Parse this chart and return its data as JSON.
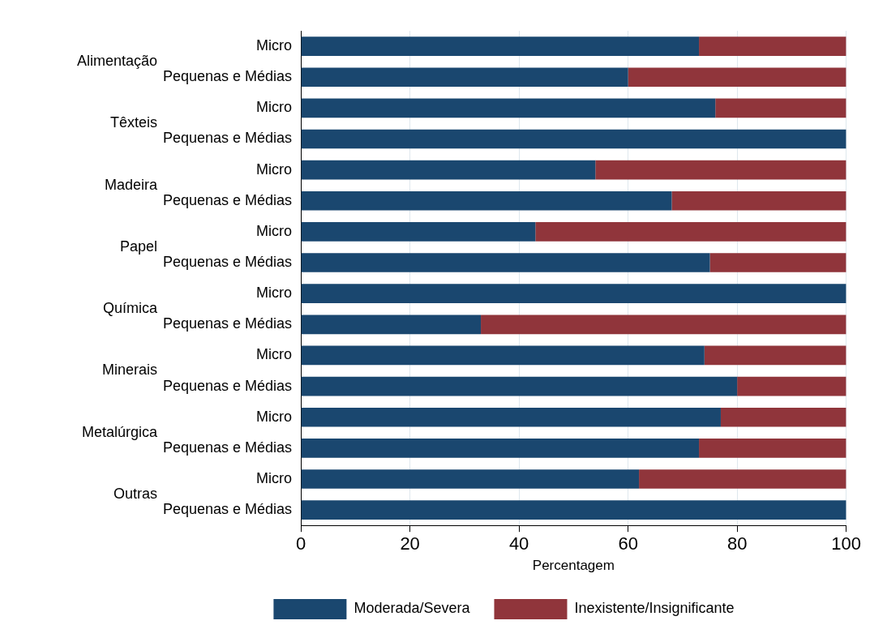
{
  "chart_data": {
    "type": "bar",
    "orientation": "horizontal",
    "stacked": true,
    "xlabel": "Percentagem",
    "categories": [
      "Micro",
      "Pequenas e Médias",
      "Micro",
      "Pequenas e Médias",
      "Micro",
      "Pequenas e Médias",
      "Micro",
      "Pequenas e Médias",
      "Micro",
      "Pequenas e Médias",
      "Micro",
      "Pequenas e Médias",
      "Micro",
      "Pequenas e Médias",
      "Micro",
      "Pequenas e Médias"
    ],
    "annotations": [
      "Alimentação",
      "Têxteis",
      "Madeira",
      "Papel",
      "Química",
      "Minerais",
      "Metalúrgica",
      "Outras"
    ],
    "series": [
      {
        "name": "Moderada/Severa",
        "color": "#1a476f",
        "values": [
          73,
          60,
          76,
          100,
          54,
          68,
          43,
          75,
          100,
          33,
          74,
          80,
          77,
          73,
          62,
          100
        ]
      },
      {
        "name": "Inexistente/Insignificante",
        "color": "#90353b",
        "values": [
          27,
          40,
          24,
          0,
          46,
          32,
          57,
          25,
          0,
          67,
          26,
          20,
          23,
          27,
          38,
          0
        ]
      }
    ],
    "xlim": [
      0,
      100
    ],
    "xticks": [
      0,
      20,
      40,
      60,
      80,
      100
    ],
    "grid": "x",
    "legend": "bottom"
  }
}
